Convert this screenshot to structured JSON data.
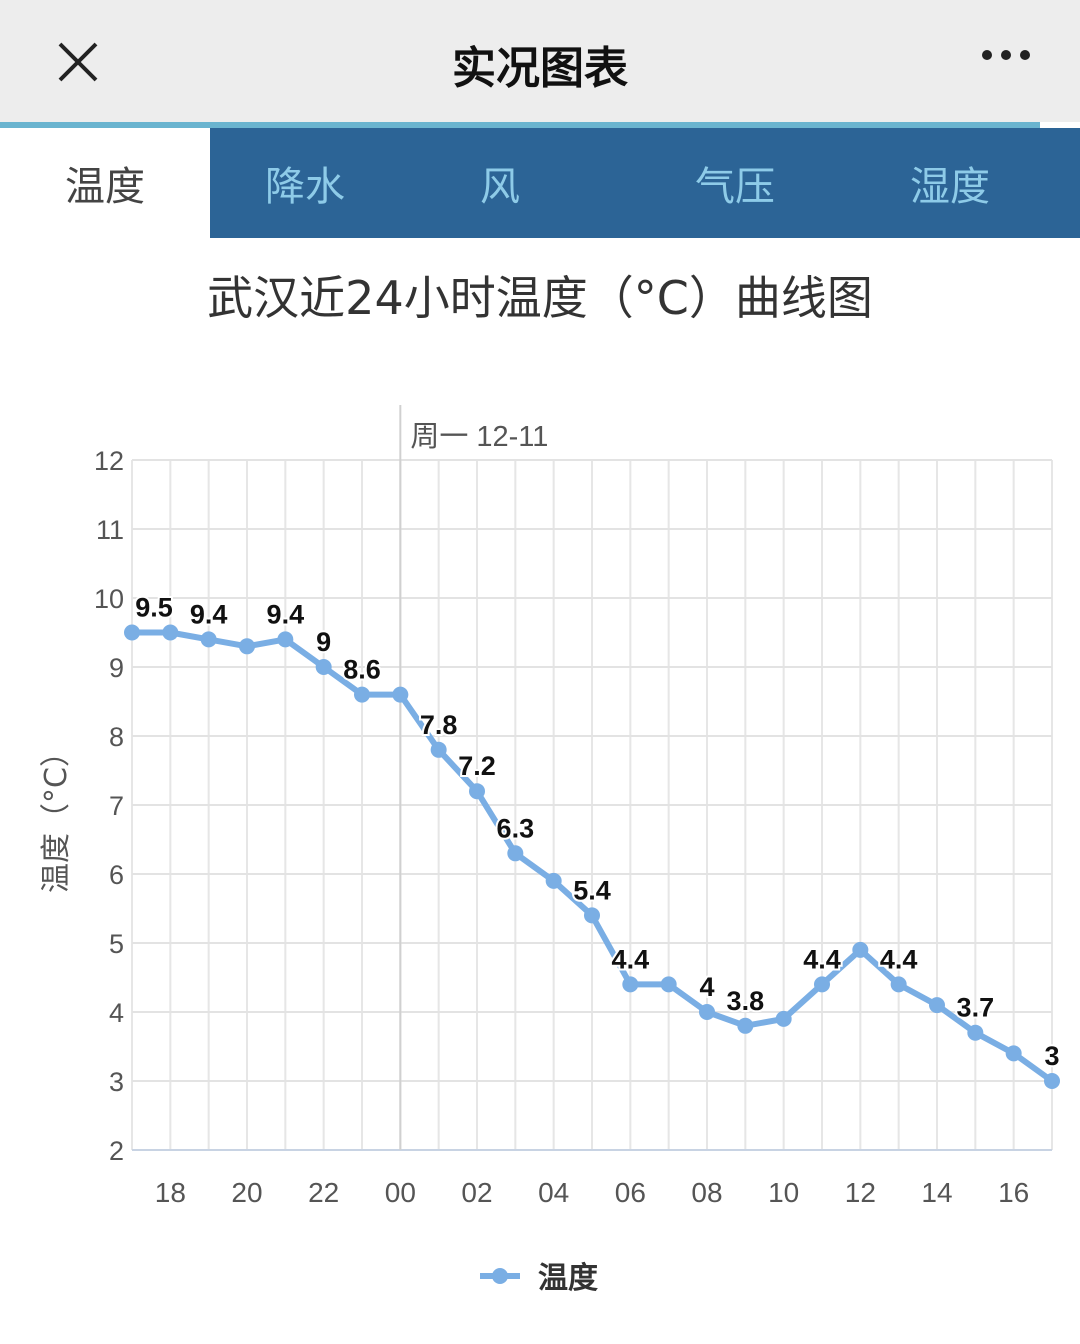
{
  "header": {
    "title": "实况图表",
    "close_icon": "close-icon",
    "more_icon": "more-icon"
  },
  "tabs": [
    {
      "label": "温度",
      "active": true
    },
    {
      "label": "降水",
      "active": false
    },
    {
      "label": "风",
      "active": false
    },
    {
      "label": "气压",
      "active": false
    },
    {
      "label": "湿度",
      "active": false
    }
  ],
  "colors": {
    "series": "#7aaee4",
    "tab_bg": "#2c6496",
    "tab_text": "#8ecbe8",
    "accent": "#6ab4cf"
  },
  "chart_data": {
    "type": "line",
    "title": "武汉近24小时温度（°C）曲线图",
    "xlabel": "",
    "ylabel": "温度（°C）",
    "ylim": [
      2,
      12
    ],
    "yticks": [
      2,
      3,
      4,
      5,
      6,
      7,
      8,
      9,
      10,
      11,
      12
    ],
    "day_marker": {
      "label": "周一 12-11",
      "at": "00"
    },
    "x": [
      "17",
      "18",
      "19",
      "20",
      "21",
      "22",
      "23",
      "00",
      "01",
      "02",
      "03",
      "04",
      "05",
      "06",
      "07",
      "08",
      "09",
      "10",
      "11",
      "12",
      "13",
      "14",
      "15",
      "16",
      "17"
    ],
    "xtick_labels": [
      "18",
      "20",
      "22",
      "00",
      "02",
      "04",
      "06",
      "08",
      "10",
      "12",
      "14",
      "16"
    ],
    "series": [
      {
        "name": "温度",
        "values": [
          9.5,
          9.5,
          9.4,
          9.3,
          9.4,
          9.0,
          8.6,
          8.6,
          7.8,
          7.2,
          6.3,
          5.9,
          5.4,
          4.4,
          4.4,
          4.0,
          3.8,
          3.9,
          4.4,
          4.9,
          4.4,
          4.1,
          3.7,
          3.4,
          3.0
        ]
      }
    ],
    "data_labels": [
      {
        "i": 0,
        "text": "9.5"
      },
      {
        "i": 2,
        "text": "9.4"
      },
      {
        "i": 4,
        "text": "9.4"
      },
      {
        "i": 5,
        "text": "9"
      },
      {
        "i": 6,
        "text": "8.6"
      },
      {
        "i": 8,
        "text": "7.8"
      },
      {
        "i": 9,
        "text": "7.2"
      },
      {
        "i": 10,
        "text": "6.3"
      },
      {
        "i": 12,
        "text": "5.4"
      },
      {
        "i": 13,
        "text": "4.4"
      },
      {
        "i": 15,
        "text": "4"
      },
      {
        "i": 16,
        "text": "3.8"
      },
      {
        "i": 18,
        "text": "4.4"
      },
      {
        "i": 20,
        "text": "4.4"
      },
      {
        "i": 22,
        "text": "3.7"
      },
      {
        "i": 24,
        "text": "3"
      }
    ],
    "legend": {
      "position": "bottom",
      "entries": [
        "温度"
      ]
    },
    "grid": true
  }
}
